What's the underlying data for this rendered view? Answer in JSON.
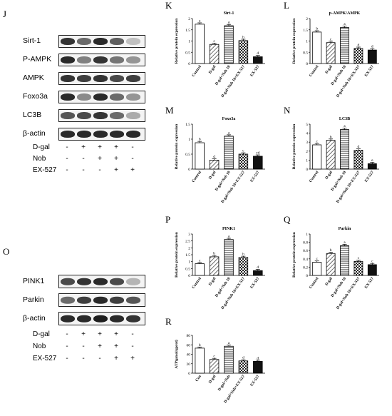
{
  "panel_letters": {
    "J": "J",
    "K": "K",
    "L": "L",
    "M": "M",
    "N": "N",
    "O": "O",
    "P": "P",
    "Q": "Q",
    "R": "R"
  },
  "blots_J": {
    "proteins": [
      "Sirt-1",
      "P-AMPK",
      "AMPK",
      "Foxo3a",
      "LC3B",
      "β-actin"
    ],
    "intensity": [
      [
        0.85,
        0.6,
        0.9,
        0.65,
        0.2
      ],
      [
        0.9,
        0.5,
        0.85,
        0.55,
        0.4
      ],
      [
        0.85,
        0.8,
        0.85,
        0.75,
        0.8
      ],
      [
        0.9,
        0.45,
        0.9,
        0.6,
        0.4
      ],
      [
        0.7,
        0.75,
        0.85,
        0.6,
        0.3
      ],
      [
        0.9,
        0.9,
        0.9,
        0.9,
        0.9
      ]
    ],
    "treatments": [
      {
        "name": "D-gal",
        "signs": [
          "-",
          "+",
          "+",
          "+",
          "-"
        ]
      },
      {
        "name": "Nob",
        "signs": [
          "-",
          "-",
          "+",
          "+",
          "-"
        ]
      },
      {
        "name": "EX-527",
        "signs": [
          "-",
          "-",
          "-",
          "+",
          "+"
        ]
      }
    ]
  },
  "blots_O": {
    "proteins": [
      "PINK1",
      "Parkin",
      "β-actin"
    ],
    "intensity": [
      [
        0.75,
        0.85,
        0.9,
        0.75,
        0.25
      ],
      [
        0.6,
        0.8,
        0.9,
        0.8,
        0.7
      ],
      [
        0.9,
        0.9,
        0.95,
        0.9,
        0.85
      ]
    ],
    "treatments": [
      {
        "name": "D-gal",
        "signs": [
          "-",
          "+",
          "+",
          "+",
          "-"
        ]
      },
      {
        "name": "Nob",
        "signs": [
          "-",
          "-",
          "+",
          "+",
          "-"
        ]
      },
      {
        "name": "EX-527",
        "signs": [
          "-",
          "-",
          "-",
          "+",
          "+"
        ]
      }
    ]
  },
  "chart_data": [
    {
      "id": "K",
      "type": "bar",
      "title": "Sirt-1",
      "ylabel": "Relative protein expression",
      "ylim": [
        0,
        2
      ],
      "yticks": [
        0,
        0.5,
        1,
        1.5,
        2
      ],
      "categories": [
        "Control",
        "D-gal",
        "D-gal+Nob 10",
        "D-gal+Nob 10+EX-527",
        "EX-527"
      ],
      "values": [
        1.75,
        0.85,
        1.68,
        1.02,
        0.3
      ],
      "letters": [
        "a",
        "c",
        "a",
        "b",
        "d"
      ]
    },
    {
      "id": "L",
      "type": "bar",
      "title": "p-AMPK/AMPK",
      "ylabel": "Relative protein expression",
      "ylim": [
        0,
        2
      ],
      "yticks": [
        0,
        0.5,
        1,
        1.5,
        2
      ],
      "categories": [
        "Control",
        "D-gal",
        "D-gal+Nob 10",
        "D-gal+Nob 10+EX-527",
        "EX-527"
      ],
      "values": [
        1.4,
        0.93,
        1.6,
        0.67,
        0.6
      ],
      "letters": [
        "b",
        "c",
        "a",
        "d",
        "d"
      ]
    },
    {
      "id": "M",
      "type": "bar",
      "title": "Foxo3a",
      "ylabel": "Relative protein expression",
      "ylim": [
        0,
        1.5
      ],
      "yticks": [
        0,
        0.5,
        1,
        1.5
      ],
      "categories": [
        "Control",
        "D-gal",
        "D-gal+Nob 10",
        "D-gal+Nob 10+EX-527",
        "EX-527"
      ],
      "values": [
        0.88,
        0.3,
        1.1,
        0.5,
        0.43
      ],
      "letters": [
        "b",
        "d",
        "a",
        "c",
        "cd"
      ]
    },
    {
      "id": "N",
      "type": "bar",
      "title": "LC3B",
      "ylabel": "Relative protein expression",
      "ylim": [
        0,
        5
      ],
      "yticks": [
        0,
        1,
        2,
        3,
        4,
        5
      ],
      "categories": [
        "Control",
        "D-gal",
        "D-gal+Nob 10",
        "D-gal+Nob 10+EX-527",
        "EX-527"
      ],
      "values": [
        2.7,
        3.2,
        4.4,
        2.1,
        0.6
      ],
      "letters": [
        "c",
        "b",
        "a",
        "d",
        "e"
      ]
    },
    {
      "id": "P",
      "type": "bar",
      "title": "PINK1",
      "ylabel": "Relative protein expression",
      "ylim": [
        0,
        3
      ],
      "yticks": [
        0,
        0.5,
        1,
        1.5,
        2,
        2.5,
        3
      ],
      "categories": [
        "Control",
        "D-gal",
        "D-gal+Nob 10",
        "D-gal+Nob 10+EX-527",
        "EX-527"
      ],
      "values": [
        0.85,
        1.35,
        2.6,
        1.3,
        0.35
      ],
      "letters": [
        "c",
        "b",
        "a",
        "b",
        "d"
      ]
    },
    {
      "id": "Q",
      "type": "bar",
      "title": "Parkin",
      "ylabel": "Relative protein expression",
      "ylim": [
        0,
        1
      ],
      "yticks": [
        0,
        0.2,
        0.4,
        0.6,
        0.8,
        1
      ],
      "categories": [
        "Control",
        "D-gal",
        "D-gal+Nob 10",
        "D-gal+Nob 10+EX-527",
        "EX-527"
      ],
      "values": [
        0.32,
        0.53,
        0.72,
        0.34,
        0.26
      ],
      "letters": [
        "c",
        "b",
        "a",
        "c",
        "c"
      ]
    },
    {
      "id": "R",
      "type": "bar",
      "title": "",
      "ylabel": "ATP(μmol/gprot)",
      "ylim": [
        0,
        80
      ],
      "yticks": [
        0,
        20,
        40,
        60,
        80
      ],
      "categories": [
        "Con",
        "D-gal",
        "D-gal+Nob",
        "D-gal+Nob+EX-527",
        "EX-527"
      ],
      "values": [
        53,
        29,
        57,
        26,
        25
      ],
      "letters": [
        "b",
        "c",
        "a",
        "d",
        "d"
      ]
    }
  ]
}
